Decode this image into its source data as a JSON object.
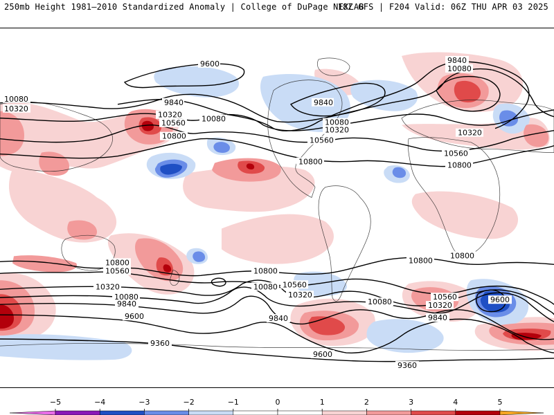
{
  "header": {
    "left_title": "250mb Height 1981–2010 Standardized Anomaly | College of DuPage NEXLAB",
    "right_title": "18Z GFS | F204 Valid: 06Z THU APR 03 2025"
  },
  "map": {
    "projection": "global cylindrical",
    "contour_labels": {
      "c9360": "9360",
      "c9600": "9600",
      "c9840": "9840",
      "c10080": "10080",
      "c10320": "10320",
      "c10560": "10560",
      "c10800": "10800"
    },
    "anomaly_colors": {
      "neg5": "#e86de8",
      "neg4": "#8a1ab8",
      "neg3": "#1f4fc4",
      "neg2": "#6a8de8",
      "neg1": "#c9dcf6",
      "zero": "#ffffff",
      "pos1": "#f8d3d3",
      "pos2": "#f29a9a",
      "pos3": "#e04a4a",
      "pos4": "#b3000b",
      "pos5": "#f5a623"
    }
  },
  "colorbar": {
    "ticks": [
      "−5",
      "−4",
      "−3",
      "−2",
      "−1",
      "0",
      "1",
      "2",
      "3",
      "4",
      "5"
    ],
    "colors": [
      "#e86de8",
      "#8a1ab8",
      "#1f4fc4",
      "#6a8de8",
      "#c9dcf6",
      "#ffffff",
      "#ffffff",
      "#f8d3d3",
      "#f29a9a",
      "#e04a4a",
      "#b3000b",
      "#f5a623"
    ]
  }
}
